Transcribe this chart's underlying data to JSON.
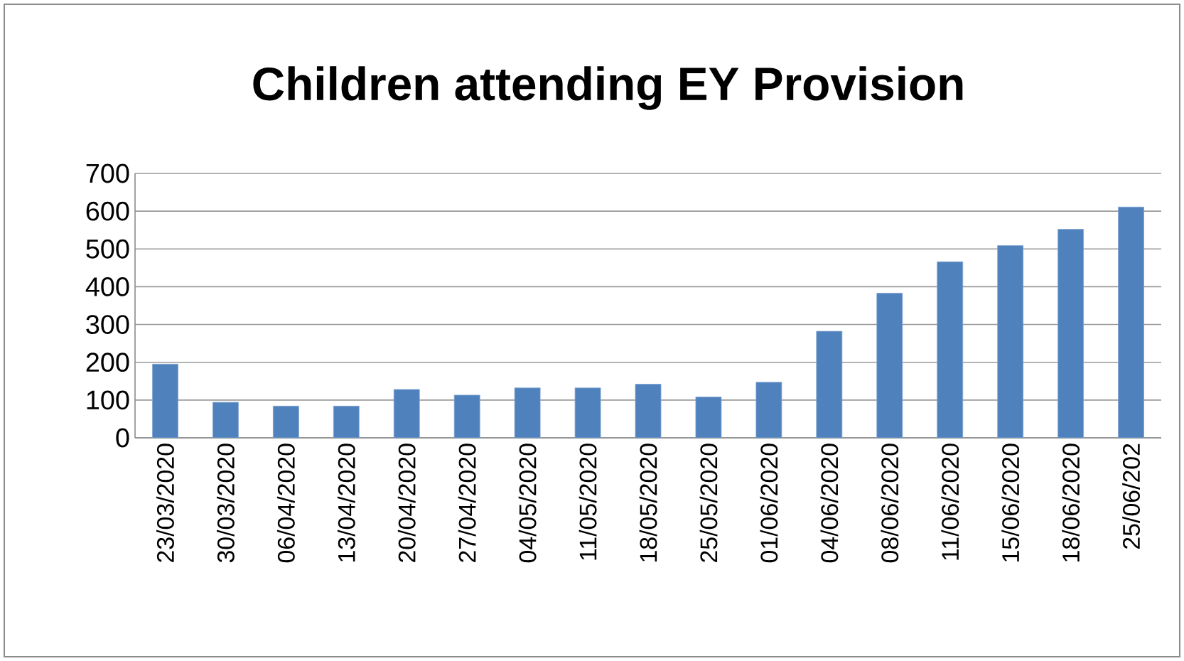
{
  "chart_data": {
    "type": "bar",
    "title": "Children attending EY Provision",
    "categories": [
      "23/03/2020",
      "30/03/2020",
      "06/04/2020",
      "13/04/2020",
      "20/04/2020",
      "27/04/2020",
      "04/05/2020",
      "11/05/2020",
      "18/05/2020",
      "25/05/2020",
      "01/06/2020",
      "04/06/2020",
      "08/06/2020",
      "11/06/2020",
      "15/06/2020",
      "18/06/2020",
      "25/06/202"
    ],
    "values": [
      195,
      94,
      84,
      84,
      128,
      113,
      132,
      132,
      142,
      108,
      147,
      282,
      383,
      466,
      509,
      552,
      611
    ],
    "color": "#4f81bd",
    "ylim": [
      0,
      700
    ],
    "yticks": [
      0,
      100,
      200,
      300,
      400,
      500,
      600,
      700
    ],
    "grid": "y"
  }
}
